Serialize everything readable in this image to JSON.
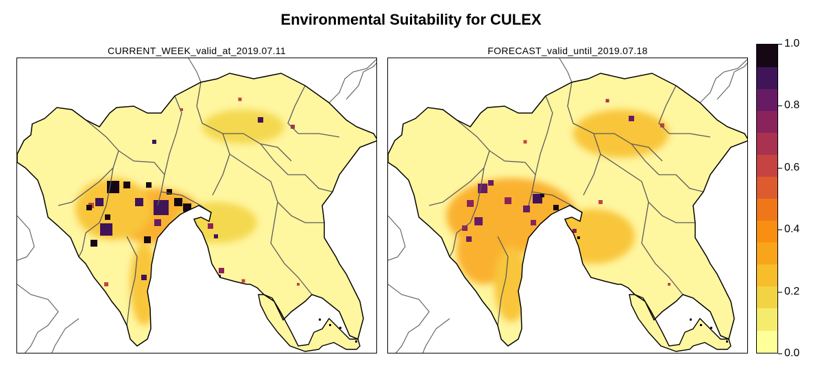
{
  "title": "Environmental Suitability for CULEX",
  "panels": [
    {
      "label": "CURRENT_WEEK_valid_at_2019.07.11"
    },
    {
      "label": "FORECAST_valid_until_2019.07.18"
    }
  ],
  "legend": {
    "ticks": [
      "1.0",
      "0.8",
      "0.6",
      "0.4",
      "0.2",
      "0.0"
    ],
    "colors": [
      "#ffff99",
      "#f5ec6e",
      "#f2d343",
      "#f7bd2b",
      "#f9a51b",
      "#f98f12",
      "#ef7619",
      "#dd5b2f",
      "#c54340",
      "#a8324f",
      "#8a235c",
      "#661c64",
      "#3f1459",
      "#150814"
    ]
  }
}
